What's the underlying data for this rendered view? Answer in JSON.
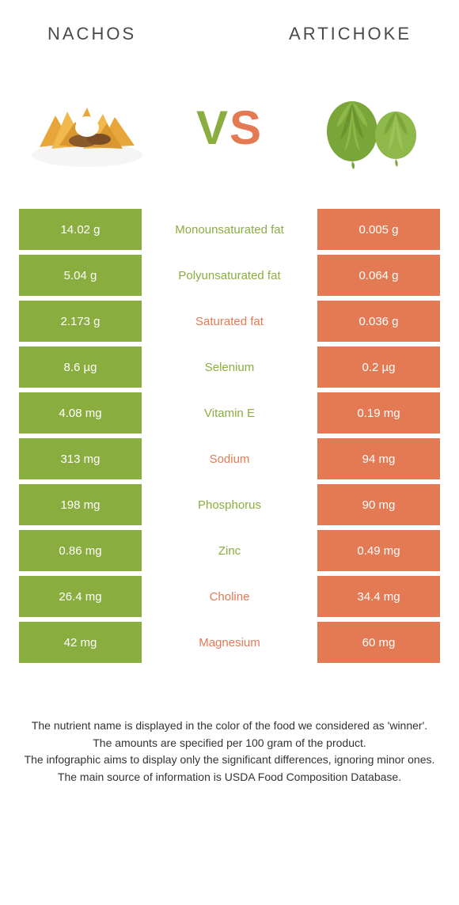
{
  "colors": {
    "green": "#8aad3f",
    "orange": "#e37a54",
    "text_dark": "#4a4a4a",
    "white": "#ffffff"
  },
  "header": {
    "left_title": "Nachos",
    "right_title": "Artichoke"
  },
  "vs": {
    "v": "V",
    "s": "S"
  },
  "table": {
    "rows": [
      {
        "left": "14.02 g",
        "label": "Monounsaturated fat",
        "right": "0.005 g",
        "winner": "left"
      },
      {
        "left": "5.04 g",
        "label": "Polyunsaturated fat",
        "right": "0.064 g",
        "winner": "left"
      },
      {
        "left": "2.173 g",
        "label": "Saturated fat",
        "right": "0.036 g",
        "winner": "right"
      },
      {
        "left": "8.6 µg",
        "label": "Selenium",
        "right": "0.2 µg",
        "winner": "left"
      },
      {
        "left": "4.08 mg",
        "label": "Vitamin E",
        "right": "0.19 mg",
        "winner": "left"
      },
      {
        "left": "313 mg",
        "label": "Sodium",
        "right": "94 mg",
        "winner": "right"
      },
      {
        "left": "198 mg",
        "label": "Phosphorus",
        "right": "90 mg",
        "winner": "left"
      },
      {
        "left": "0.86 mg",
        "label": "Zinc",
        "right": "0.49 mg",
        "winner": "left"
      },
      {
        "left": "26.4 mg",
        "label": "Choline",
        "right": "34.4 mg",
        "winner": "right"
      },
      {
        "left": "42 mg",
        "label": "Magnesium",
        "right": "60 mg",
        "winner": "right"
      }
    ]
  },
  "footer": {
    "lines": [
      "The nutrient name is displayed in the color of the food we considered as 'winner'.",
      "The amounts are specified per 100 gram of the product.",
      "The infographic aims to display only the significant differences, ignoring minor ones.",
      "The main source of information is USDA Food Composition Database."
    ]
  }
}
